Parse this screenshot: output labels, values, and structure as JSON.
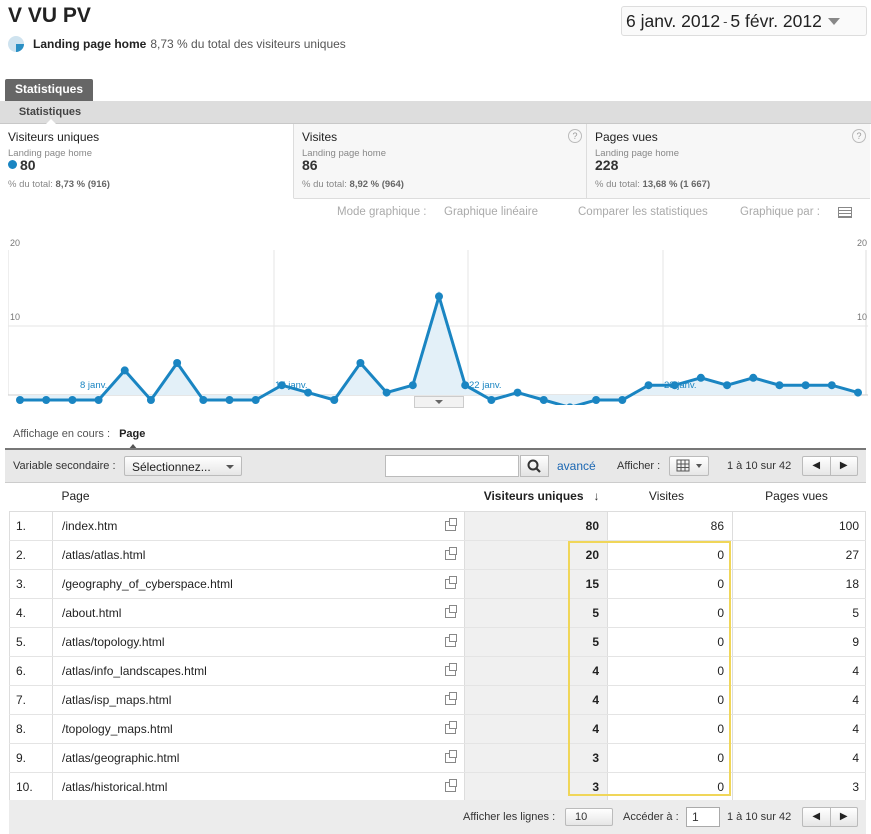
{
  "header": {
    "title": "V VU PV",
    "segment_name": "Landing page home",
    "segment_desc": "8,73 % du total des visiteurs uniques",
    "date_start": "6 janv. 2012",
    "date_sep": "-",
    "date_end": "5 févr. 2012"
  },
  "tabs": {
    "main": "Statistiques",
    "sub": "Statistiques"
  },
  "metrics": [
    {
      "title": "Visiteurs uniques",
      "segment": "Landing page home",
      "value": "80",
      "footer_prefix": "% du total:",
      "footer_value": "8,73 % (916)"
    },
    {
      "title": "Visites",
      "segment": "Landing page home",
      "value": "86",
      "footer_prefix": "% du total:",
      "footer_value": "8,92 % (964)"
    },
    {
      "title": "Pages vues",
      "segment": "Landing page home",
      "value": "228",
      "footer_prefix": "% du total:",
      "footer_value": "13,68 % (1 667)"
    }
  ],
  "chart_tools": {
    "mode_label": "Mode graphique :",
    "mode_value": "Graphique linéaire",
    "compare": "Comparer les statistiques",
    "graph_by": "Graphique par :"
  },
  "chart_data": {
    "type": "line",
    "x_labels": [
      "8 janv.",
      "15 janv.",
      "22 janv.",
      "29 janv."
    ],
    "ytick_left": [
      "20",
      "10"
    ],
    "ytick_right": [
      "20",
      "10"
    ],
    "ylim": [
      0,
      20
    ],
    "series": [
      {
        "values": [
          0,
          0,
          0,
          0,
          4,
          0,
          5,
          0,
          0,
          0,
          2,
          1,
          0,
          5,
          1,
          2,
          14,
          2,
          0,
          1,
          0,
          -1,
          0,
          0,
          2,
          2,
          3,
          2,
          3,
          2,
          2,
          2,
          1
        ]
      }
    ],
    "colors": {
      "line": "#1a85c2",
      "fill": "#e3f0f8"
    },
    "grid": true
  },
  "view": {
    "label": "Affichage en cours :",
    "value": "Page"
  },
  "toolbar": {
    "secondary_label": "Variable secondaire :",
    "secondary_value": "Sélectionnez...",
    "search_placeholder": "",
    "advanced": "avancé",
    "display_label": "Afficher :",
    "range": "1 à 10 sur 42",
    "prev": "◀",
    "next": "▶"
  },
  "table": {
    "headers": {
      "page": "Page",
      "vu": "Visiteurs uniques",
      "visits": "Visites",
      "pv": "Pages vues",
      "sort": "↓"
    },
    "rows": [
      {
        "n": "1.",
        "page": "/index.htm",
        "vu": "80",
        "visits": "86",
        "pv": "100"
      },
      {
        "n": "2.",
        "page": "/atlas/atlas.html",
        "vu": "20",
        "visits": "0",
        "pv": "27"
      },
      {
        "n": "3.",
        "page": "/geography_of_cyberspace.html",
        "vu": "15",
        "visits": "0",
        "pv": "18"
      },
      {
        "n": "4.",
        "page": "/about.html",
        "vu": "5",
        "visits": "0",
        "pv": "5"
      },
      {
        "n": "5.",
        "page": "/atlas/topology.html",
        "vu": "5",
        "visits": "0",
        "pv": "9"
      },
      {
        "n": "6.",
        "page": "/atlas/info_landscapes.html",
        "vu": "4",
        "visits": "0",
        "pv": "4"
      },
      {
        "n": "7.",
        "page": "/atlas/isp_maps.html",
        "vu": "4",
        "visits": "0",
        "pv": "4"
      },
      {
        "n": "8.",
        "page": "/topology_maps.html",
        "vu": "4",
        "visits": "0",
        "pv": "4"
      },
      {
        "n": "9.",
        "page": "/atlas/geographic.html",
        "vu": "3",
        "visits": "0",
        "pv": "4"
      },
      {
        "n": "10.",
        "page": "/atlas/historical.html",
        "vu": "3",
        "visits": "0",
        "pv": "3"
      }
    ]
  },
  "footer": {
    "rows_label": "Afficher les lignes :",
    "rows_value": "10",
    "goto_label": "Accéder à :",
    "goto_value": "1",
    "range": "1 à 10 sur 42",
    "prev": "◀",
    "next": "▶"
  }
}
